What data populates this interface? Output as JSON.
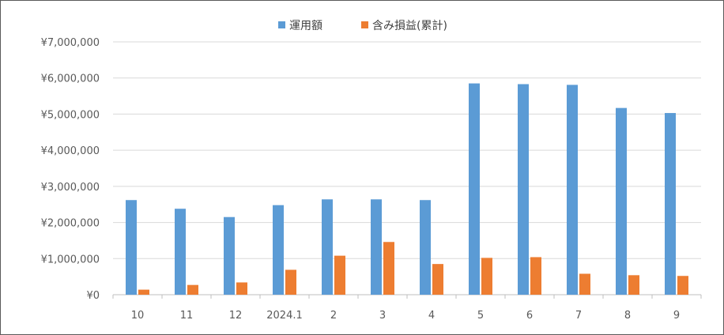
{
  "chart_data": {
    "type": "bar",
    "categories": [
      "10",
      "11",
      "12",
      "2024.1",
      "2",
      "3",
      "4",
      "5",
      "6",
      "7",
      "8",
      "9"
    ],
    "series": [
      {
        "name": "運用額",
        "color": "#5b9bd5",
        "values": [
          2620000,
          2380000,
          2150000,
          2480000,
          2640000,
          2640000,
          2620000,
          5850000,
          5830000,
          5810000,
          5170000,
          5030000
        ]
      },
      {
        "name": "含み損益(累計)",
        "color": "#ed7d31",
        "values": [
          140000,
          270000,
          340000,
          690000,
          1080000,
          1460000,
          850000,
          1020000,
          1040000,
          580000,
          540000,
          520000
        ]
      }
    ],
    "yticks": [
      "¥0",
      "¥1,000,000",
      "¥2,000,000",
      "¥3,000,000",
      "¥4,000,000",
      "¥5,000,000",
      "¥6,000,000",
      "¥7,000,000"
    ],
    "ylim": [
      0,
      7000000
    ],
    "grid": true,
    "legend_position": "top-center"
  }
}
